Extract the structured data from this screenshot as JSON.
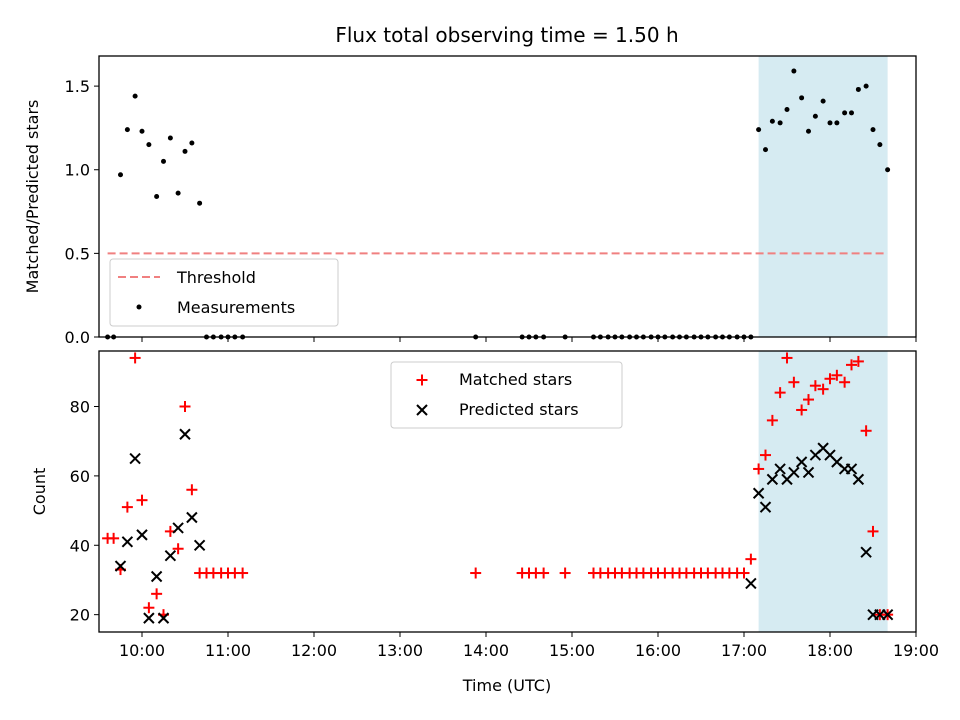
{
  "colors": {
    "shade": "#add8e6",
    "threshold": "#f08080",
    "measurement": "#000000",
    "matched": "#ff0000",
    "predicted": "#000000"
  },
  "chart_data": [
    {
      "type": "scatter",
      "title": "Flux total observing time = 1.50 h",
      "xlabel": "",
      "ylabel": "Matched/Predicted stars",
      "xlim": [
        9.5,
        19.0
      ],
      "ylim": [
        0,
        1.68
      ],
      "x_tick_values": [
        10,
        11,
        12,
        13,
        14,
        15,
        16,
        17,
        18,
        19
      ],
      "x_tick_labels_visible": false,
      "y_ticks": [
        0.0,
        0.5,
        1.0,
        1.5
      ],
      "y_tick_labels": [
        "0.0",
        "0.5",
        "1.0",
        "1.5"
      ],
      "shaded_region": [
        17.17,
        18.67
      ],
      "threshold": {
        "name": "Threshold",
        "value": 0.5,
        "x_range": [
          9.6,
          18.67
        ],
        "style": "dashed"
      },
      "series": [
        {
          "name": "Measurements",
          "marker": "dot",
          "x": [
            9.6,
            9.67,
            9.75,
            9.83,
            9.92,
            10.0,
            10.08,
            10.17,
            10.25,
            10.33,
            10.42,
            10.5,
            10.58,
            10.67,
            10.75,
            10.83,
            10.92,
            11.0,
            11.08,
            11.17,
            13.88,
            14.42,
            14.5,
            14.58,
            14.67,
            14.92,
            15.25,
            15.33,
            15.42,
            15.5,
            15.58,
            15.67,
            15.75,
            15.83,
            15.92,
            16.0,
            16.08,
            16.17,
            16.25,
            16.33,
            16.42,
            16.5,
            16.58,
            16.67,
            16.75,
            16.83,
            16.92,
            17.0,
            17.08,
            17.17,
            17.25,
            17.33,
            17.42,
            17.5,
            17.58,
            17.67,
            17.75,
            17.83,
            17.92,
            18.0,
            18.08,
            18.17,
            18.25,
            18.33,
            18.42,
            18.5,
            18.58,
            18.67
          ],
          "y": [
            0.0,
            0.0,
            0.97,
            1.24,
            1.44,
            1.23,
            1.15,
            0.84,
            1.05,
            1.19,
            0.86,
            1.11,
            1.16,
            0.8,
            0.0,
            0.0,
            0.0,
            0.0,
            0.0,
            0.0,
            0.0,
            0.0,
            0.0,
            0.0,
            0.0,
            0.0,
            0.0,
            0.0,
            0.0,
            0.0,
            0.0,
            0.0,
            0.0,
            0.0,
            0.0,
            0.0,
            0.0,
            0.0,
            0.0,
            0.0,
            0.0,
            0.0,
            0.0,
            0.0,
            0.0,
            0.0,
            0.0,
            0.0,
            0.0,
            1.24,
            1.12,
            1.29,
            1.28,
            1.36,
            1.59,
            1.43,
            1.23,
            1.32,
            1.41,
            1.28,
            1.28,
            1.34,
            1.34,
            1.48,
            1.5,
            1.24,
            1.15,
            1.0
          ]
        }
      ],
      "legend": {
        "placement": "lower-left",
        "entries": [
          "Threshold",
          "Measurements"
        ]
      }
    },
    {
      "type": "scatter",
      "title": "",
      "xlabel": "Time (UTC)",
      "ylabel": "Count",
      "xlim": [
        9.5,
        19.0
      ],
      "ylim": [
        15,
        96
      ],
      "x_tick_values": [
        10,
        11,
        12,
        13,
        14,
        15,
        16,
        17,
        18,
        19
      ],
      "x_tick_labels": [
        "10:00",
        "11:00",
        "12:00",
        "13:00",
        "14:00",
        "15:00",
        "16:00",
        "17:00",
        "18:00",
        "19:00"
      ],
      "y_ticks": [
        20,
        40,
        60,
        80
      ],
      "y_tick_labels": [
        "20",
        "40",
        "60",
        "80"
      ],
      "shaded_region": [
        17.17,
        18.67
      ],
      "series": [
        {
          "name": "Matched stars",
          "marker": "plus",
          "x": [
            9.6,
            9.67,
            9.75,
            9.83,
            9.92,
            10.0,
            10.08,
            10.17,
            10.25,
            10.33,
            10.42,
            10.5,
            10.58,
            10.67,
            10.75,
            10.83,
            10.92,
            11.0,
            11.08,
            11.17,
            13.88,
            14.42,
            14.5,
            14.58,
            14.67,
            14.92,
            15.25,
            15.33,
            15.42,
            15.5,
            15.58,
            15.67,
            15.75,
            15.83,
            15.92,
            16.0,
            16.08,
            16.17,
            16.25,
            16.33,
            16.42,
            16.5,
            16.58,
            16.67,
            16.75,
            16.83,
            16.92,
            17.0,
            17.08,
            17.17,
            17.25,
            17.33,
            17.42,
            17.5,
            17.58,
            17.67,
            17.75,
            17.83,
            17.92,
            18.0,
            18.08,
            18.17,
            18.25,
            18.33,
            18.42,
            18.5,
            18.58,
            18.67
          ],
          "y": [
            42,
            42,
            33,
            51,
            94,
            53,
            22,
            26,
            20,
            44,
            39,
            80,
            56,
            32,
            32,
            32,
            32,
            32,
            32,
            32,
            32,
            32,
            32,
            32,
            32,
            32,
            32,
            32,
            32,
            32,
            32,
            32,
            32,
            32,
            32,
            32,
            32,
            32,
            32,
            32,
            32,
            32,
            32,
            32,
            32,
            32,
            32,
            32,
            36,
            62,
            66,
            76,
            84,
            94,
            87,
            79,
            82,
            86,
            85,
            88,
            89,
            87,
            92,
            93,
            73,
            44,
            20,
            20
          ]
        },
        {
          "name": "Predicted stars",
          "marker": "x",
          "x": [
            9.75,
            9.83,
            9.92,
            10.0,
            10.08,
            10.17,
            10.25,
            10.33,
            10.42,
            10.5,
            10.58,
            10.67,
            17.08,
            17.17,
            17.25,
            17.33,
            17.42,
            17.5,
            17.58,
            17.67,
            17.75,
            17.83,
            17.92,
            18.0,
            18.08,
            18.17,
            18.25,
            18.33,
            18.42,
            18.5,
            18.58,
            18.67
          ],
          "y": [
            34,
            41,
            65,
            43,
            19,
            31,
            19,
            37,
            45,
            72,
            48,
            40,
            29,
            55,
            51,
            59,
            62,
            59,
            61,
            64,
            61,
            66,
            68,
            66,
            64,
            62,
            62,
            59,
            38,
            20,
            20,
            20
          ]
        }
      ],
      "legend": {
        "placement": "upper-center",
        "entries": [
          "Matched stars",
          "Predicted stars"
        ]
      }
    }
  ]
}
